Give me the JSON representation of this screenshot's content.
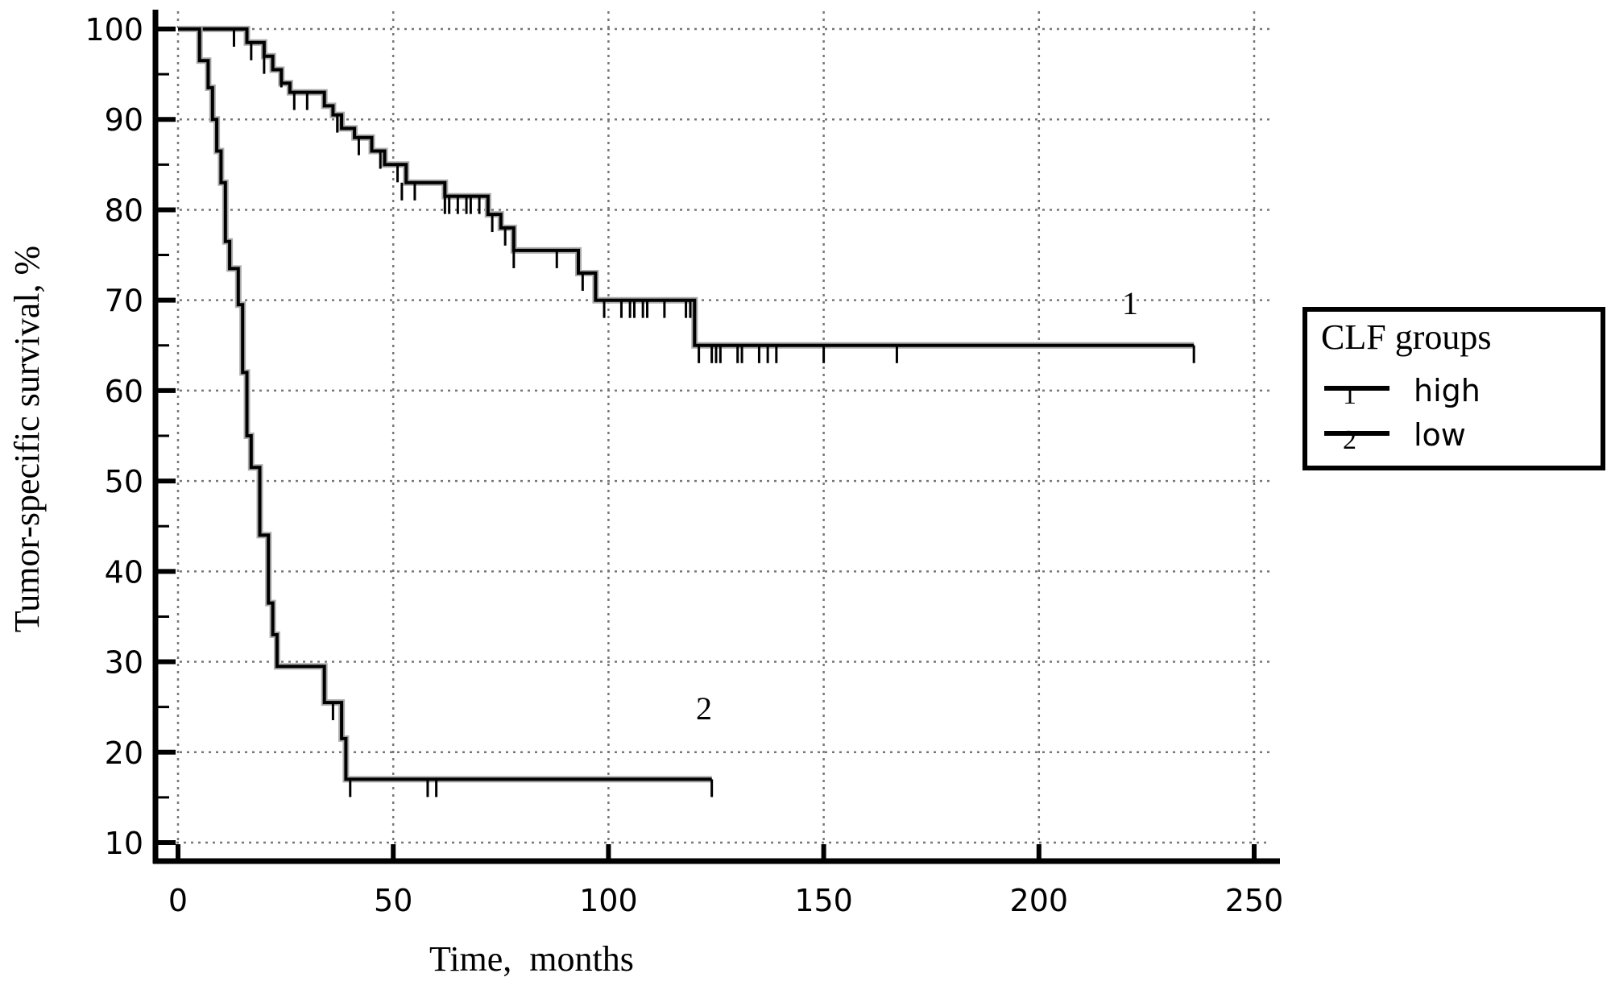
{
  "chart_data": {
    "type": "line",
    "subtype": "kaplan-meier",
    "title": "",
    "xlabel": "Time,  months",
    "ylabel": "Tumor-specific survival, %",
    "xlim": [
      0,
      250
    ],
    "ylim": [
      10,
      100
    ],
    "x_ticks": [
      0,
      50,
      100,
      150,
      200,
      250
    ],
    "y_ticks": [
      10,
      20,
      30,
      40,
      50,
      60,
      70,
      80,
      90,
      100
    ],
    "grid": true,
    "legend": {
      "title": "CLF groups",
      "position": "right",
      "entries": [
        {
          "marker": "1",
          "label": "high"
        },
        {
          "marker": "2",
          "label": "low"
        }
      ]
    },
    "series": [
      {
        "name": "high",
        "id": "1",
        "annotation": {
          "text": "1",
          "x": 221,
          "y": 70
        },
        "steps": [
          [
            0,
            100
          ],
          [
            16,
            100
          ],
          [
            16,
            98.5
          ],
          [
            20,
            98.5
          ],
          [
            20,
            97
          ],
          [
            22,
            97
          ],
          [
            22,
            95.5
          ],
          [
            24,
            95.5
          ],
          [
            24,
            94
          ],
          [
            26,
            94
          ],
          [
            26,
            93
          ],
          [
            34,
            93
          ],
          [
            34,
            91.5
          ],
          [
            36,
            91.5
          ],
          [
            36,
            90.5
          ],
          [
            38,
            90.5
          ],
          [
            38,
            89
          ],
          [
            41,
            89
          ],
          [
            41,
            88
          ],
          [
            45,
            88
          ],
          [
            45,
            86.5
          ],
          [
            48,
            86.5
          ],
          [
            48,
            85
          ],
          [
            53,
            85
          ],
          [
            53,
            83
          ],
          [
            62,
            83
          ],
          [
            62,
            81.5
          ],
          [
            72,
            81.5
          ],
          [
            72,
            79.5
          ],
          [
            75,
            79.5
          ],
          [
            75,
            78
          ],
          [
            78,
            78
          ],
          [
            78,
            75.5
          ],
          [
            93,
            75.5
          ],
          [
            93,
            73
          ],
          [
            97,
            73
          ],
          [
            97,
            70
          ],
          [
            120,
            70
          ],
          [
            120,
            65
          ],
          [
            236,
            65
          ]
        ],
        "censored": [
          [
            13,
            100
          ],
          [
            17,
            98.5
          ],
          [
            20,
            97
          ],
          [
            24,
            95.5
          ],
          [
            27,
            93
          ],
          [
            30,
            93
          ],
          [
            37,
            90.5
          ],
          [
            42,
            88
          ],
          [
            47,
            86.5
          ],
          [
            51,
            85
          ],
          [
            52,
            83
          ],
          [
            55,
            83
          ],
          [
            62,
            81.5
          ],
          [
            63,
            81.5
          ],
          [
            65,
            81.5
          ],
          [
            67,
            81.5
          ],
          [
            68,
            81.5
          ],
          [
            70,
            81.5
          ],
          [
            73,
            79.5
          ],
          [
            76,
            78
          ],
          [
            78,
            75.5
          ],
          [
            88,
            75.5
          ],
          [
            94,
            73
          ],
          [
            99,
            70
          ],
          [
            103,
            70
          ],
          [
            105,
            70
          ],
          [
            106,
            70
          ],
          [
            108,
            70
          ],
          [
            109,
            70
          ],
          [
            113,
            70
          ],
          [
            118,
            70
          ],
          [
            119,
            70
          ],
          [
            121,
            65
          ],
          [
            124,
            65
          ],
          [
            125,
            65
          ],
          [
            126,
            65
          ],
          [
            130,
            65
          ],
          [
            131,
            65
          ],
          [
            135,
            65
          ],
          [
            137,
            65
          ],
          [
            139,
            65
          ],
          [
            150,
            65
          ],
          [
            167,
            65
          ],
          [
            236,
            65
          ]
        ]
      },
      {
        "name": "low",
        "id": "2",
        "annotation": {
          "text": "2",
          "x": 122,
          "y": 25
        },
        "steps": [
          [
            0,
            100
          ],
          [
            5,
            100
          ],
          [
            5,
            96.5
          ],
          [
            7,
            96.5
          ],
          [
            7,
            93.5
          ],
          [
            8,
            93.5
          ],
          [
            8,
            90
          ],
          [
            9,
            90
          ],
          [
            9,
            86.5
          ],
          [
            10,
            86.5
          ],
          [
            10,
            83
          ],
          [
            11,
            83
          ],
          [
            11,
            76.5
          ],
          [
            12,
            76.5
          ],
          [
            12,
            73.5
          ],
          [
            14,
            73.5
          ],
          [
            14,
            69.5
          ],
          [
            15,
            69.5
          ],
          [
            15,
            62
          ],
          [
            16,
            62
          ],
          [
            16,
            55
          ],
          [
            17,
            55
          ],
          [
            17,
            51.5
          ],
          [
            19,
            51.5
          ],
          [
            19,
            44
          ],
          [
            21,
            44
          ],
          [
            21,
            36.5
          ],
          [
            22,
            36.5
          ],
          [
            22,
            33
          ],
          [
            23,
            33
          ],
          [
            23,
            29.5
          ],
          [
            34,
            29.5
          ],
          [
            34,
            25.5
          ],
          [
            38,
            25.5
          ],
          [
            38,
            21.5
          ],
          [
            39,
            21.5
          ],
          [
            39,
            17
          ],
          [
            124,
            17
          ]
        ],
        "censored": [
          [
            36,
            25.5
          ],
          [
            40,
            17
          ],
          [
            58,
            17
          ],
          [
            60,
            17
          ],
          [
            124,
            17
          ]
        ]
      }
    ]
  },
  "axes": {
    "x_title": "Time,  months",
    "y_title": "Tumor-specific survival, %"
  },
  "legend": {
    "title": "CLF groups",
    "items": [
      {
        "num": "1",
        "label": "high"
      },
      {
        "num": "2",
        "label": "low"
      }
    ]
  },
  "annotations": {
    "curve1": "1",
    "curve2": "2"
  }
}
